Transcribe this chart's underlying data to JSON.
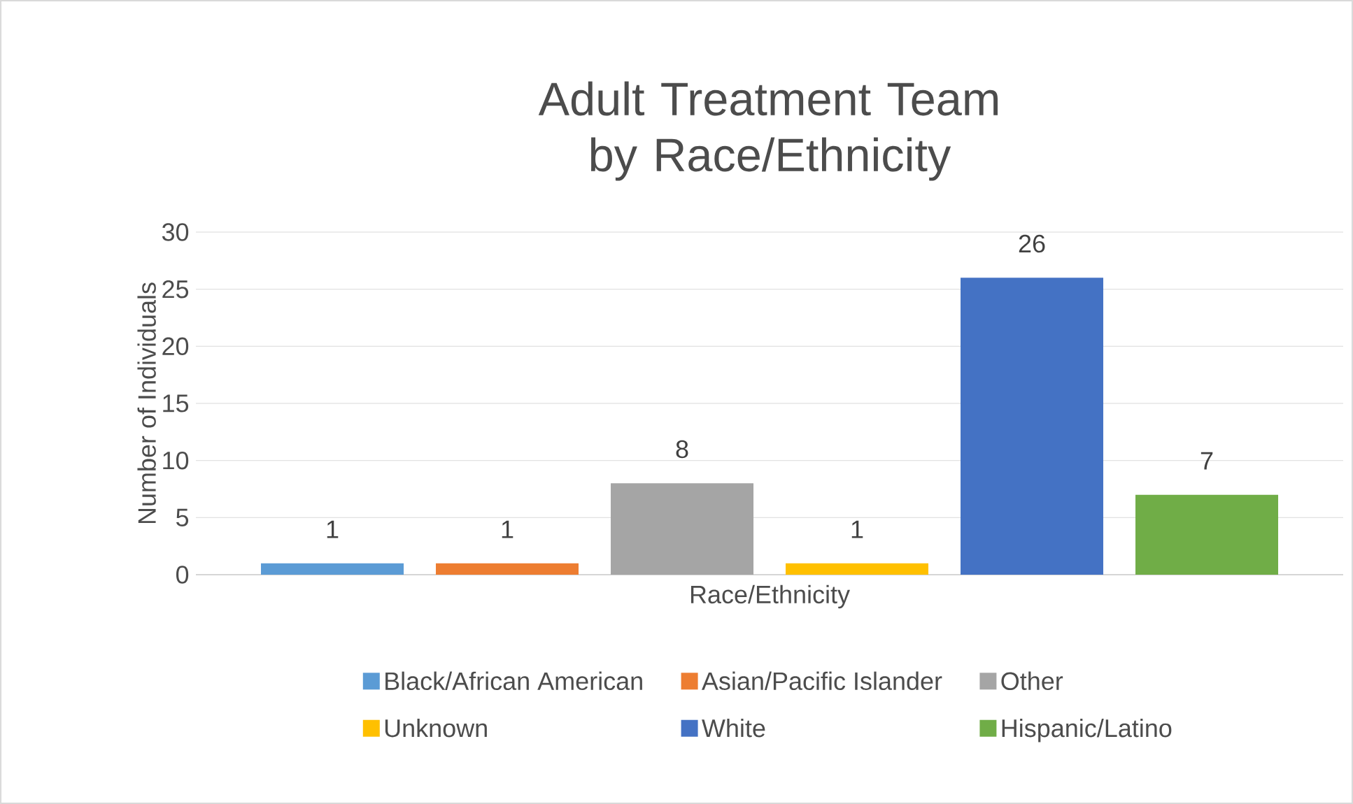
{
  "chart_data": {
    "type": "bar",
    "title": "Adult Treatment Team by Race/Ethnicity",
    "xlabel": "Race/Ethnicity",
    "ylabel": "Number of Individuals",
    "categories": [
      null
    ],
    "series": [
      {
        "name": "Black/African American",
        "color": "#5b9bd5",
        "values": [
          1
        ]
      },
      {
        "name": "Asian/Pacific Islander",
        "color": "#ed7d31",
        "values": [
          1
        ]
      },
      {
        "name": "Other",
        "color": "#a5a5a5",
        "values": [
          8
        ]
      },
      {
        "name": "Unknown",
        "color": "#ffc000",
        "values": [
          1
        ]
      },
      {
        "name": "White",
        "color": "#4472c4",
        "values": [
          26
        ]
      },
      {
        "name": "Hispanic/Latino",
        "color": "#70ad47",
        "values": [
          7
        ]
      }
    ],
    "ylim": [
      0,
      30
    ],
    "yticks": [
      0,
      5,
      10,
      15,
      20,
      25,
      30
    ],
    "grid": "y",
    "legend": "bottom",
    "data_labels": true
  }
}
